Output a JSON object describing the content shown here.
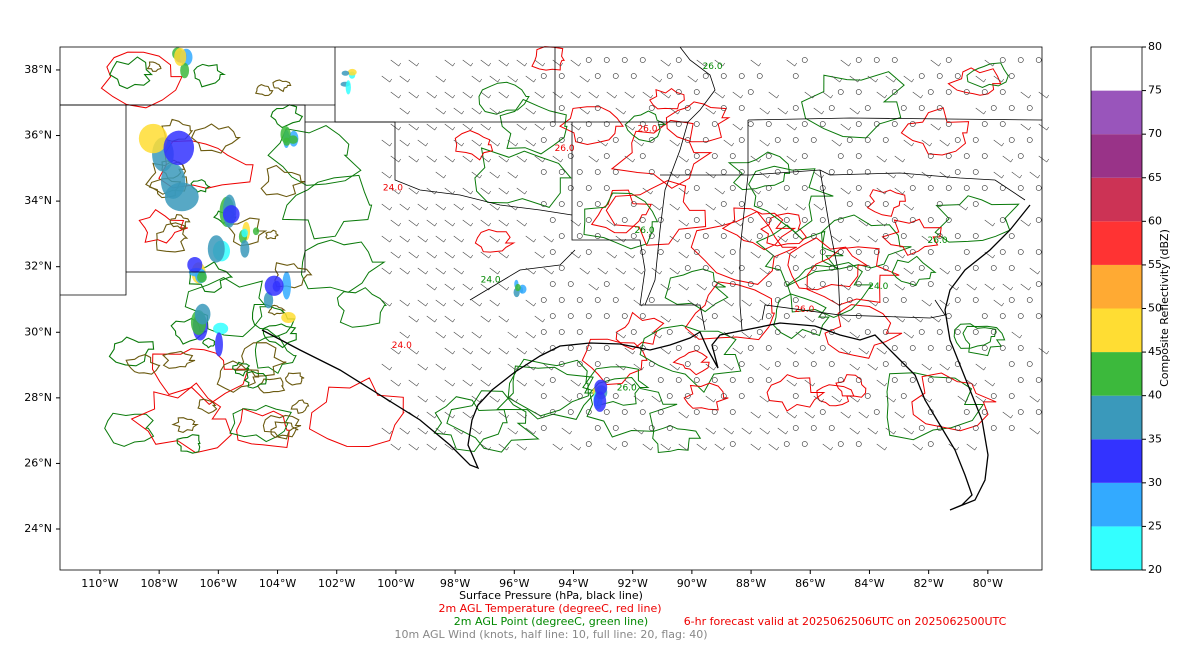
{
  "map": {
    "xlim": [
      -111.35,
      -78.17
    ],
    "ylim": [
      22.75,
      38.7
    ],
    "xticks": [
      {
        "value": -110,
        "label": "110°W"
      },
      {
        "value": -108,
        "label": "108°W"
      },
      {
        "value": -106,
        "label": "106°W"
      },
      {
        "value": -104,
        "label": "104°W"
      },
      {
        "value": -102,
        "label": "102°W"
      },
      {
        "value": -100,
        "label": "100°W"
      },
      {
        "value": -98,
        "label": "98°W"
      },
      {
        "value": -96,
        "label": "96°W"
      },
      {
        "value": -94,
        "label": "94°W"
      },
      {
        "value": -92,
        "label": "92°W"
      },
      {
        "value": -90,
        "label": "90°W"
      },
      {
        "value": -88,
        "label": "88°W"
      },
      {
        "value": -86,
        "label": "86°W"
      },
      {
        "value": -84,
        "label": "84°W"
      },
      {
        "value": -82,
        "label": "82°W"
      },
      {
        "value": -80,
        "label": "80°W"
      }
    ],
    "yticks": [
      {
        "value": 24,
        "label": "24°N"
      },
      {
        "value": 26,
        "label": "26°N"
      },
      {
        "value": 28,
        "label": "28°N"
      },
      {
        "value": 30,
        "label": "30°N"
      },
      {
        "value": 32,
        "label": "32°N"
      },
      {
        "value": 34,
        "label": "34°N"
      },
      {
        "value": 36,
        "label": "36°N"
      },
      {
        "value": 38,
        "label": "38°N"
      }
    ],
    "contour_labels": [
      {
        "value": 26,
        "label": "26.0",
        "lon": -91.5,
        "lat": 36.2,
        "line": "temperature"
      },
      {
        "value": 24,
        "label": "24.0",
        "lon": -100.1,
        "lat": 34.4,
        "line": "temperature"
      },
      {
        "value": 26,
        "label": "26.0",
        "lon": -86.2,
        "lat": 30.7,
        "line": "temperature"
      },
      {
        "value": 24,
        "label": "24.0",
        "lon": -99.8,
        "lat": 29.6,
        "line": "temperature"
      },
      {
        "value": 26,
        "label": "26.0",
        "lon": -94.3,
        "lat": 35.6,
        "line": "temperature"
      },
      {
        "value": 26,
        "label": "26.0",
        "lon": -89.3,
        "lat": 38.1,
        "line": "dewpoint"
      },
      {
        "value": 26,
        "label": "26.0",
        "lon": -91.6,
        "lat": 33.1,
        "line": "dewpoint"
      },
      {
        "value": 24,
        "label": "24.0",
        "lon": -96.8,
        "lat": 31.6,
        "line": "dewpoint"
      },
      {
        "value": 26,
        "label": "26.0",
        "lon": -92.2,
        "lat": 28.3,
        "line": "dewpoint"
      },
      {
        "value": 26,
        "label": "26.0",
        "lon": -81.7,
        "lat": 32.8,
        "line": "dewpoint"
      },
      {
        "value": 24,
        "label": "24.0",
        "lon": -83.7,
        "lat": 31.4,
        "line": "dewpoint"
      }
    ]
  },
  "colorbar": {
    "label": "Composite Reflectivity (dBZ)",
    "lim": [
      20,
      80
    ],
    "ticks": [
      20,
      25,
      30,
      35,
      40,
      45,
      50,
      55,
      60,
      65,
      70,
      75,
      80
    ],
    "colors": [
      "#33ffff",
      "#33aaff",
      "#3333ff",
      "#3a99bb",
      "#3cb93c",
      "#ffdd33",
      "#ffaa33",
      "#ff3333",
      "#cc3355",
      "#993388",
      "#9955bb",
      "#ffffff"
    ]
  },
  "captions": {
    "pressure": "Surface Pressure (hPa, black line)",
    "temperature": "2m AGL Temperature (degreeC, red line)",
    "dewpoint": "2m AGL Point (degreeC, green line)",
    "wind": "10m AGL Wind (knots, half line: 10, full line: 20, flag: 40)",
    "valid": "6-hr forecast valid at 2025062506UTC on 2025062500UTC"
  }
}
